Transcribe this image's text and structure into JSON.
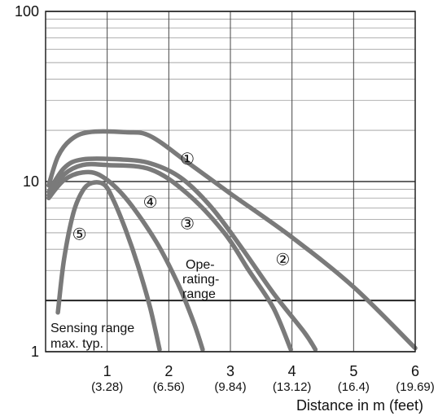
{
  "chart_data": {
    "type": "line",
    "xlabel": "Distance in m (feet)",
    "ylabel": "",
    "xlim": [
      0,
      6
    ],
    "ylim": [
      1,
      100
    ],
    "y_scale": "log",
    "grid": true,
    "x_ticks": [
      {
        "value": 1,
        "label": "1",
        "sublabel": "(3.28)"
      },
      {
        "value": 2,
        "label": "2",
        "sublabel": "(6.56)"
      },
      {
        "value": 3,
        "label": "3",
        "sublabel": "(9.84)"
      },
      {
        "value": 4,
        "label": "4",
        "sublabel": "(13.12)"
      },
      {
        "value": 5,
        "label": "5",
        "sublabel": "(16.4)"
      },
      {
        "value": 6,
        "label": "6",
        "sublabel": "(19.69)"
      }
    ],
    "y_ticks": [
      {
        "value": 1,
        "label": "1"
      },
      {
        "value": 10,
        "label": "10"
      },
      {
        "value": 100,
        "label": "100"
      }
    ],
    "threshold": {
      "value": 2,
      "label_above": [
        "Ope-",
        "rating-",
        "range"
      ],
      "label_below": [
        "Sensing range",
        "max. typ."
      ]
    },
    "series": [
      {
        "label": "①",
        "label_at": [
          2.3,
          13.5
        ],
        "points": [
          [
            0.05,
            9.5
          ],
          [
            0.2,
            14
          ],
          [
            0.4,
            17.5
          ],
          [
            0.7,
            19.5
          ],
          [
            1.3,
            19.5
          ],
          [
            1.7,
            18.5
          ],
          [
            2.3,
            13
          ],
          [
            3,
            8.5
          ],
          [
            4,
            4.7
          ],
          [
            5,
            2.4
          ],
          [
            6,
            1.05
          ]
        ]
      },
      {
        "label": "②",
        "label_at": [
          3.85,
          3.45
        ],
        "points": [
          [
            0.05,
            8.7
          ],
          [
            0.3,
            12
          ],
          [
            0.6,
            13.5
          ],
          [
            1.2,
            13.5
          ],
          [
            1.7,
            12.8
          ],
          [
            2.2,
            10.5
          ],
          [
            2.7,
            7
          ],
          [
            3.2,
            4
          ],
          [
            3.7,
            2.2
          ],
          [
            4.2,
            1.3
          ],
          [
            4.38,
            1.03
          ]
        ]
      },
      {
        "label": "③",
        "label_at": [
          2.3,
          5.6
        ],
        "points": [
          [
            0.05,
            8.3
          ],
          [
            0.3,
            11
          ],
          [
            0.6,
            12.5
          ],
          [
            1,
            12.5
          ],
          [
            1.7,
            11.8
          ],
          [
            2.3,
            8.5
          ],
          [
            2.9,
            5
          ],
          [
            3.3,
            3
          ],
          [
            3.7,
            1.8
          ],
          [
            3.98,
            1.03
          ]
        ]
      },
      {
        "label": "④",
        "label_at": [
          1.7,
          7.5
        ],
        "points": [
          [
            0.05,
            8
          ],
          [
            0.3,
            10.2
          ],
          [
            0.6,
            11.3
          ],
          [
            0.9,
            10.8
          ],
          [
            1.3,
            8
          ],
          [
            1.8,
            4.4
          ],
          [
            2.15,
            2.5
          ],
          [
            2.4,
            1.5
          ],
          [
            2.55,
            1.03
          ]
        ]
      },
      {
        "label": "⑤",
        "label_at": [
          0.55,
          4.85
        ],
        "points": [
          [
            0.2,
            1.7
          ],
          [
            0.3,
            3.5
          ],
          [
            0.45,
            6.5
          ],
          [
            0.6,
            8.8
          ],
          [
            0.75,
            9.8
          ],
          [
            0.95,
            9.6
          ],
          [
            1.1,
            7.8
          ],
          [
            1.3,
            5.2
          ],
          [
            1.5,
            3.2
          ],
          [
            1.7,
            1.8
          ],
          [
            1.85,
            1.03
          ]
        ]
      }
    ]
  }
}
